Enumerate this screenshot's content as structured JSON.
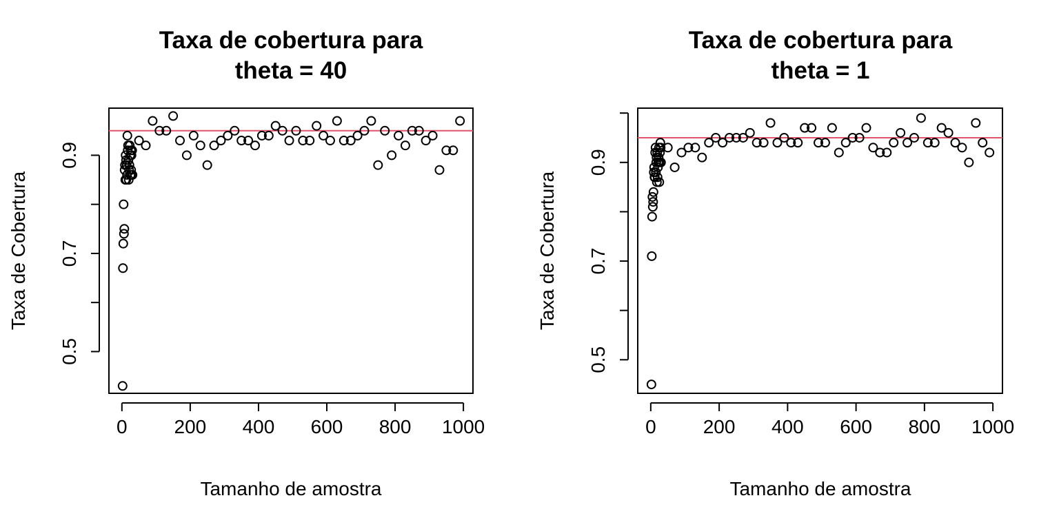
{
  "chart_data": [
    {
      "type": "scatter",
      "title": [
        "Taxa de cobertura para",
        "theta = 40"
      ],
      "xlabel": "Tamanho de amostra",
      "ylabel": "Taxa de Cobertura",
      "xlim": [
        -38,
        1028
      ],
      "ylim": [
        0.415,
        0.996
      ],
      "xticks": [
        0,
        200,
        400,
        600,
        800,
        1000
      ],
      "yticks": [
        0.5,
        0.6,
        0.7,
        0.8,
        0.9
      ],
      "ytick_labels": [
        "0.5",
        "",
        "0.7",
        "",
        "0.9"
      ],
      "hline": 0.95,
      "hline_color": "#df536b",
      "points": [
        {
          "x": 2,
          "y": 0.43
        },
        {
          "x": 3,
          "y": 0.67
        },
        {
          "x": 4,
          "y": 0.72
        },
        {
          "x": 5,
          "y": 0.8
        },
        {
          "x": 6,
          "y": 0.74
        },
        {
          "x": 7,
          "y": 0.75
        },
        {
          "x": 8,
          "y": 0.87
        },
        {
          "x": 9,
          "y": 0.88
        },
        {
          "x": 10,
          "y": 0.85
        },
        {
          "x": 11,
          "y": 0.9
        },
        {
          "x": 12,
          "y": 0.89
        },
        {
          "x": 13,
          "y": 0.85
        },
        {
          "x": 14,
          "y": 0.88
        },
        {
          "x": 15,
          "y": 0.86
        },
        {
          "x": 16,
          "y": 0.94
        },
        {
          "x": 17,
          "y": 0.91
        },
        {
          "x": 18,
          "y": 0.92
        },
        {
          "x": 19,
          "y": 0.89
        },
        {
          "x": 20,
          "y": 0.85
        },
        {
          "x": 21,
          "y": 0.87
        },
        {
          "x": 22,
          "y": 0.88
        },
        {
          "x": 23,
          "y": 0.92
        },
        {
          "x": 24,
          "y": 0.9
        },
        {
          "x": 25,
          "y": 0.86
        },
        {
          "x": 26,
          "y": 0.91
        },
        {
          "x": 27,
          "y": 0.87
        },
        {
          "x": 28,
          "y": 0.9
        },
        {
          "x": 29,
          "y": 0.86
        },
        {
          "x": 30,
          "y": 0.91
        },
        {
          "x": 31,
          "y": 0.86
        },
        {
          "x": 50,
          "y": 0.93
        },
        {
          "x": 70,
          "y": 0.92
        },
        {
          "x": 90,
          "y": 0.97
        },
        {
          "x": 110,
          "y": 0.95
        },
        {
          "x": 130,
          "y": 0.95
        },
        {
          "x": 150,
          "y": 0.98
        },
        {
          "x": 170,
          "y": 0.93
        },
        {
          "x": 190,
          "y": 0.9
        },
        {
          "x": 210,
          "y": 0.94
        },
        {
          "x": 230,
          "y": 0.92
        },
        {
          "x": 250,
          "y": 0.88
        },
        {
          "x": 270,
          "y": 0.92
        },
        {
          "x": 290,
          "y": 0.93
        },
        {
          "x": 310,
          "y": 0.94
        },
        {
          "x": 330,
          "y": 0.95
        },
        {
          "x": 350,
          "y": 0.93
        },
        {
          "x": 370,
          "y": 0.93
        },
        {
          "x": 390,
          "y": 0.92
        },
        {
          "x": 410,
          "y": 0.94
        },
        {
          "x": 430,
          "y": 0.94
        },
        {
          "x": 450,
          "y": 0.96
        },
        {
          "x": 470,
          "y": 0.95
        },
        {
          "x": 490,
          "y": 0.93
        },
        {
          "x": 510,
          "y": 0.95
        },
        {
          "x": 530,
          "y": 0.93
        },
        {
          "x": 550,
          "y": 0.93
        },
        {
          "x": 570,
          "y": 0.96
        },
        {
          "x": 590,
          "y": 0.94
        },
        {
          "x": 610,
          "y": 0.93
        },
        {
          "x": 630,
          "y": 0.97
        },
        {
          "x": 650,
          "y": 0.93
        },
        {
          "x": 670,
          "y": 0.93
        },
        {
          "x": 690,
          "y": 0.94
        },
        {
          "x": 710,
          "y": 0.95
        },
        {
          "x": 730,
          "y": 0.97
        },
        {
          "x": 750,
          "y": 0.88
        },
        {
          "x": 770,
          "y": 0.95
        },
        {
          "x": 790,
          "y": 0.9
        },
        {
          "x": 810,
          "y": 0.94
        },
        {
          "x": 830,
          "y": 0.92
        },
        {
          "x": 850,
          "y": 0.95
        },
        {
          "x": 870,
          "y": 0.95
        },
        {
          "x": 890,
          "y": 0.93
        },
        {
          "x": 910,
          "y": 0.94
        },
        {
          "x": 930,
          "y": 0.87
        },
        {
          "x": 950,
          "y": 0.91
        },
        {
          "x": 970,
          "y": 0.91
        },
        {
          "x": 990,
          "y": 0.97
        }
      ]
    },
    {
      "type": "scatter",
      "title": [
        "Taxa de cobertura para",
        "theta = 1"
      ],
      "xlabel": "Tamanho de amostra",
      "ylabel": "Taxa de Cobertura",
      "xlim": [
        -38,
        1028
      ],
      "ylim": [
        0.432,
        1.01
      ],
      "xticks": [
        0,
        200,
        400,
        600,
        800,
        1000
      ],
      "yticks": [
        0.5,
        0.6,
        0.7,
        0.8,
        0.9,
        1.0
      ],
      "ytick_labels": [
        "0.5",
        "",
        "0.7",
        "",
        "0.9",
        ""
      ],
      "hline": 0.95,
      "hline_color": "#df536b",
      "points": [
        {
          "x": 2,
          "y": 0.45
        },
        {
          "x": 3,
          "y": 0.71
        },
        {
          "x": 4,
          "y": 0.79
        },
        {
          "x": 5,
          "y": 0.83
        },
        {
          "x": 6,
          "y": 0.81
        },
        {
          "x": 7,
          "y": 0.82
        },
        {
          "x": 8,
          "y": 0.84
        },
        {
          "x": 9,
          "y": 0.88
        },
        {
          "x": 10,
          "y": 0.89
        },
        {
          "x": 11,
          "y": 0.87
        },
        {
          "x": 12,
          "y": 0.87
        },
        {
          "x": 13,
          "y": 0.92
        },
        {
          "x": 14,
          "y": 0.93
        },
        {
          "x": 15,
          "y": 0.88
        },
        {
          "x": 16,
          "y": 0.9
        },
        {
          "x": 17,
          "y": 0.91
        },
        {
          "x": 18,
          "y": 0.86
        },
        {
          "x": 19,
          "y": 0.92
        },
        {
          "x": 20,
          "y": 0.87
        },
        {
          "x": 21,
          "y": 0.89
        },
        {
          "x": 22,
          "y": 0.9
        },
        {
          "x": 23,
          "y": 0.91
        },
        {
          "x": 24,
          "y": 0.93
        },
        {
          "x": 25,
          "y": 0.86
        },
        {
          "x": 26,
          "y": 0.9
        },
        {
          "x": 27,
          "y": 0.92
        },
        {
          "x": 28,
          "y": 0.94
        },
        {
          "x": 29,
          "y": 0.93
        },
        {
          "x": 30,
          "y": 0.9
        },
        {
          "x": 50,
          "y": 0.93
        },
        {
          "x": 70,
          "y": 0.89
        },
        {
          "x": 90,
          "y": 0.92
        },
        {
          "x": 110,
          "y": 0.93
        },
        {
          "x": 130,
          "y": 0.93
        },
        {
          "x": 150,
          "y": 0.91
        },
        {
          "x": 170,
          "y": 0.94
        },
        {
          "x": 190,
          "y": 0.95
        },
        {
          "x": 210,
          "y": 0.94
        },
        {
          "x": 230,
          "y": 0.95
        },
        {
          "x": 250,
          "y": 0.95
        },
        {
          "x": 270,
          "y": 0.95
        },
        {
          "x": 290,
          "y": 0.96
        },
        {
          "x": 310,
          "y": 0.94
        },
        {
          "x": 330,
          "y": 0.94
        },
        {
          "x": 350,
          "y": 0.98
        },
        {
          "x": 370,
          "y": 0.94
        },
        {
          "x": 390,
          "y": 0.95
        },
        {
          "x": 410,
          "y": 0.94
        },
        {
          "x": 430,
          "y": 0.94
        },
        {
          "x": 450,
          "y": 0.97
        },
        {
          "x": 470,
          "y": 0.97
        },
        {
          "x": 490,
          "y": 0.94
        },
        {
          "x": 510,
          "y": 0.94
        },
        {
          "x": 530,
          "y": 0.97
        },
        {
          "x": 550,
          "y": 0.92
        },
        {
          "x": 570,
          "y": 0.94
        },
        {
          "x": 590,
          "y": 0.95
        },
        {
          "x": 610,
          "y": 0.95
        },
        {
          "x": 630,
          "y": 0.97
        },
        {
          "x": 650,
          "y": 0.93
        },
        {
          "x": 670,
          "y": 0.92
        },
        {
          "x": 690,
          "y": 0.92
        },
        {
          "x": 710,
          "y": 0.94
        },
        {
          "x": 730,
          "y": 0.96
        },
        {
          "x": 750,
          "y": 0.94
        },
        {
          "x": 770,
          "y": 0.95
        },
        {
          "x": 790,
          "y": 0.99
        },
        {
          "x": 810,
          "y": 0.94
        },
        {
          "x": 830,
          "y": 0.94
        },
        {
          "x": 850,
          "y": 0.97
        },
        {
          "x": 870,
          "y": 0.96
        },
        {
          "x": 890,
          "y": 0.94
        },
        {
          "x": 910,
          "y": 0.93
        },
        {
          "x": 930,
          "y": 0.9
        },
        {
          "x": 950,
          "y": 0.98
        },
        {
          "x": 970,
          "y": 0.94
        },
        {
          "x": 990,
          "y": 0.92
        }
      ]
    }
  ]
}
